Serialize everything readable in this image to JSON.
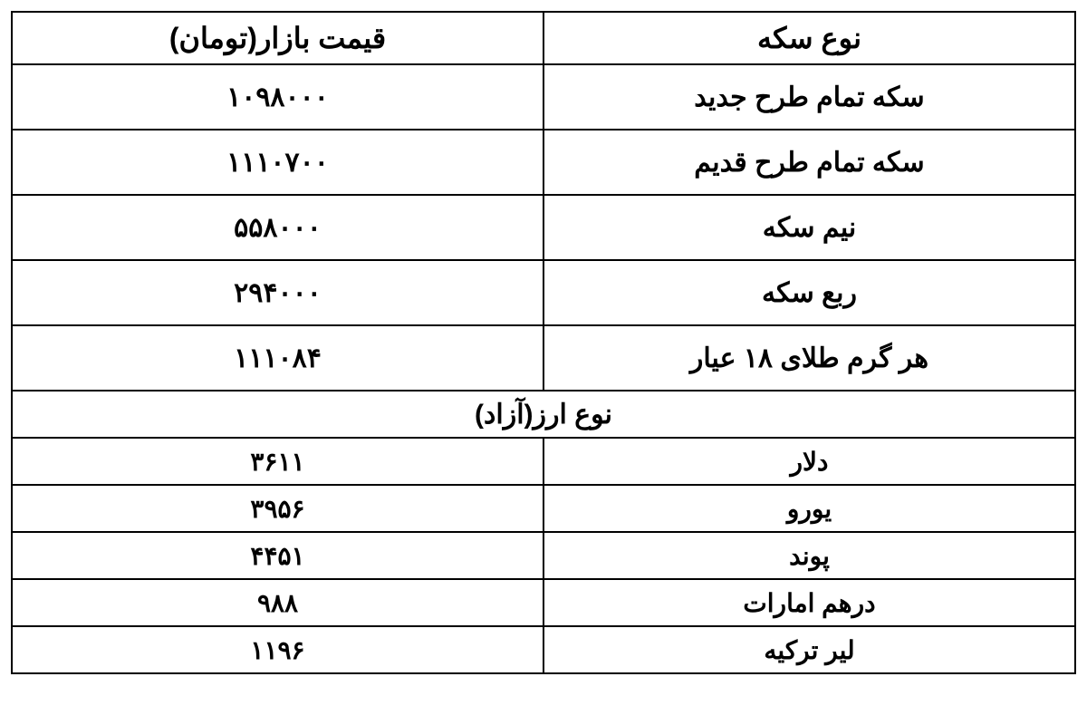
{
  "table": {
    "headers": {
      "name": "نوع سکه",
      "price": "قیمت بازار(تومان)"
    },
    "coin_rows": [
      {
        "name": "سکه تمام طرح جدید",
        "price": "۱۰۹۸۰۰۰"
      },
      {
        "name": "سکه تمام طرح قدیم",
        "price": "۱۱۱۰۷۰۰"
      },
      {
        "name": "نیم سکه",
        "price": "۵۵۸۰۰۰"
      },
      {
        "name": "ربع سکه",
        "price": "۲۹۴۰۰۰"
      },
      {
        "name": "هر گرم طلای ۱۸ عیار",
        "price": "۱۱۱۰۸۴"
      }
    ],
    "currency_section_header": "نوع ارز(آزاد)",
    "currency_rows": [
      {
        "name": "دلار",
        "price": "۳۶۱۱"
      },
      {
        "name": "یورو",
        "price": "۳۹۵۶"
      },
      {
        "name": "پوند",
        "price": "۴۴۵۱"
      },
      {
        "name": "درهم امارات",
        "price": "۹۸۸"
      },
      {
        "name": "لیر ترکیه",
        "price": "۱۱۹۶"
      }
    ],
    "styling": {
      "border_color": "#000000",
      "border_width": 2,
      "background_color": "#ffffff",
      "text_color": "#000000",
      "header_fontsize": 32,
      "coin_row_fontsize": 30,
      "currency_row_fontsize": 28,
      "header_row_height": 58,
      "coin_row_height": 72,
      "currency_row_height": 52,
      "font_weight": "bold",
      "text_align": "center",
      "columns": [
        {
          "id": "name",
          "width_pct": 50,
          "align": "center"
        },
        {
          "id": "price",
          "width_pct": 50,
          "align": "center"
        }
      ]
    }
  }
}
